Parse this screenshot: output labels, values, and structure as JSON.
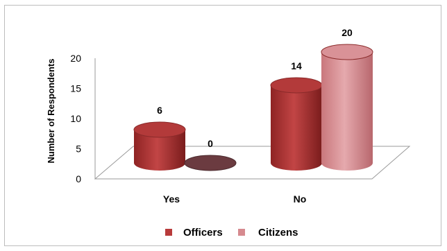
{
  "chart_data": {
    "type": "bar",
    "title": "",
    "xlabel": "",
    "ylabel": "Number of Respondents",
    "categories": [
      "Yes",
      "No"
    ],
    "series": [
      {
        "name": "Officers",
        "values": [
          6,
          14
        ],
        "color": "#b83b3b"
      },
      {
        "name": "Citizens",
        "values": [
          0,
          20
        ],
        "color": "#d68a8f"
      }
    ],
    "ylim": [
      0,
      20
    ],
    "yticks": [
      "0",
      "5",
      "10",
      "15",
      "20"
    ],
    "data_labels": [
      "6",
      "0",
      "14",
      "20"
    ],
    "legend_position": "bottom",
    "grid": false,
    "style": "3d-cylinder"
  }
}
